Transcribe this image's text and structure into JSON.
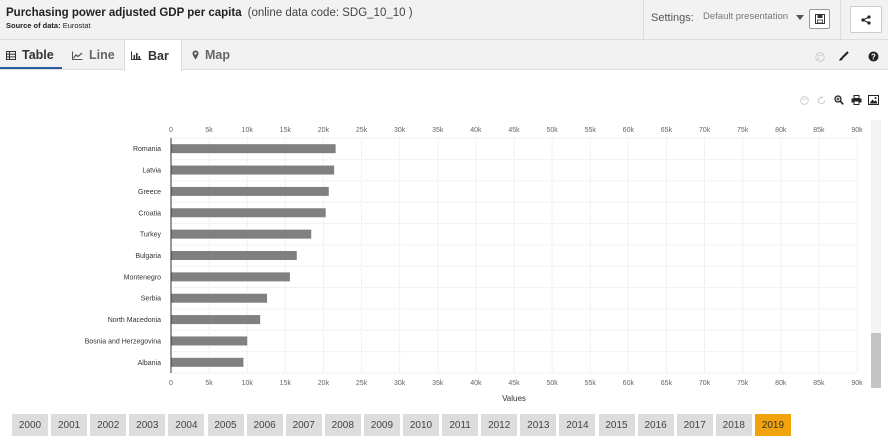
{
  "header": {
    "title": "Purchasing power adjusted GDP per capita",
    "code": "(online data code: SDG_10_10 )",
    "source_label": "Source of data:",
    "source_value": "Eurostat",
    "settings_label": "Settings:",
    "settings_value": "Default presentation",
    "share_icon": "share-icon",
    "save_icon": "save-icon"
  },
  "tabs": [
    {
      "label": "Table",
      "icon": "table-icon",
      "active": false
    },
    {
      "label": "Line",
      "icon": "line-chart-icon",
      "active": false
    },
    {
      "label": "Bar",
      "icon": "bar-chart-icon",
      "active": true
    },
    {
      "label": "Map",
      "icon": "map-marker-icon",
      "active": false
    }
  ],
  "colors": {
    "bar": "#808080",
    "selected_year": "#f0a30a",
    "active_tab_underline": "#2a5d9f"
  },
  "chart_data": {
    "type": "bar",
    "orientation": "horizontal",
    "categories": [
      "Romania",
      "Latvia",
      "Greece",
      "Croatia",
      "Turkey",
      "Bulgaria",
      "Montenegro",
      "Serbia",
      "North Macedonia",
      "Bosnia and Herzegovina",
      "Albania"
    ],
    "values": [
      21600,
      21400,
      20700,
      20300,
      18400,
      16500,
      15600,
      12600,
      11700,
      10000,
      9500
    ],
    "xlabel": "Values",
    "xlim": [
      0,
      90000
    ],
    "xticks": [
      "0",
      "5k",
      "10k",
      "15k",
      "20k",
      "25k",
      "30k",
      "35k",
      "40k",
      "45k",
      "50k",
      "55k",
      "60k",
      "65k",
      "70k",
      "75k",
      "80k",
      "85k",
      "90k"
    ],
    "grid": true
  },
  "years": {
    "items": [
      "2000",
      "2001",
      "2002",
      "2003",
      "2004",
      "2005",
      "2006",
      "2007",
      "2008",
      "2009",
      "2010",
      "2011",
      "2012",
      "2013",
      "2014",
      "2015",
      "2016",
      "2017",
      "2018",
      "2019"
    ],
    "selected": "2019"
  }
}
